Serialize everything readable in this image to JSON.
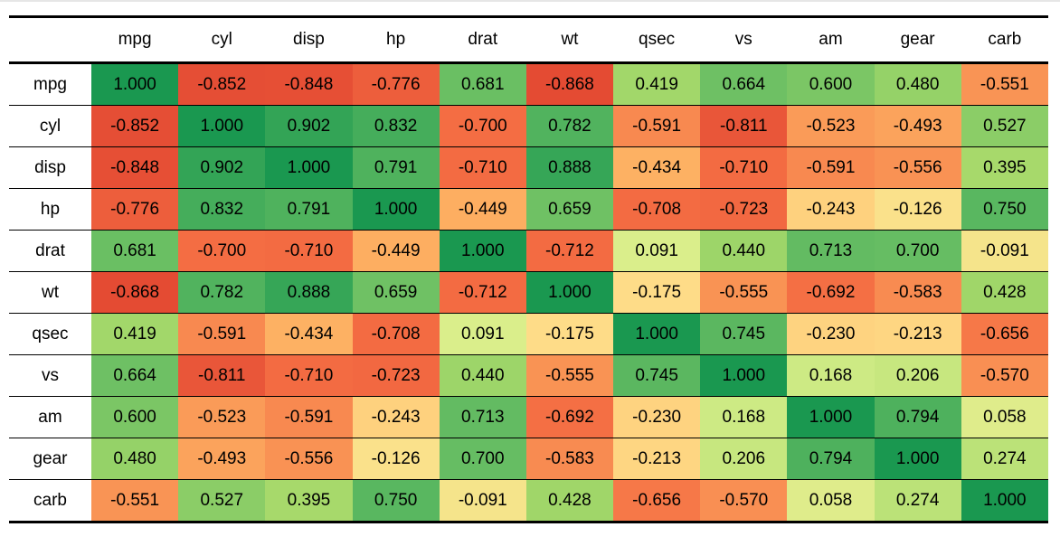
{
  "chart_data": {
    "type": "heatmap",
    "title": "",
    "columns": [
      "mpg",
      "cyl",
      "disp",
      "hp",
      "drat",
      "wt",
      "qsec",
      "vs",
      "am",
      "gear",
      "carb"
    ],
    "rows": [
      "mpg",
      "cyl",
      "disp",
      "hp",
      "drat",
      "wt",
      "qsec",
      "vs",
      "am",
      "gear",
      "carb"
    ],
    "values": [
      [
        1.0,
        -0.852,
        -0.848,
        -0.776,
        0.681,
        -0.868,
        0.419,
        0.664,
        0.6,
        0.48,
        -0.551
      ],
      [
        -0.852,
        1.0,
        0.902,
        0.832,
        -0.7,
        0.782,
        -0.591,
        -0.811,
        -0.523,
        -0.493,
        0.527
      ],
      [
        -0.848,
        0.902,
        1.0,
        0.791,
        -0.71,
        0.888,
        -0.434,
        -0.71,
        -0.591,
        -0.556,
        0.395
      ],
      [
        -0.776,
        0.832,
        0.791,
        1.0,
        -0.449,
        0.659,
        -0.708,
        -0.723,
        -0.243,
        -0.126,
        0.75
      ],
      [
        0.681,
        -0.7,
        -0.71,
        -0.449,
        1.0,
        -0.712,
        0.091,
        0.44,
        0.713,
        0.7,
        -0.091
      ],
      [
        -0.868,
        0.782,
        0.888,
        0.659,
        -0.712,
        1.0,
        -0.175,
        -0.555,
        -0.692,
        -0.583,
        0.428
      ],
      [
        0.419,
        -0.591,
        -0.434,
        -0.708,
        0.091,
        -0.175,
        1.0,
        0.745,
        -0.23,
        -0.213,
        -0.656
      ],
      [
        0.664,
        -0.811,
        -0.71,
        -0.723,
        0.44,
        -0.555,
        0.745,
        1.0,
        0.168,
        0.206,
        -0.57
      ],
      [
        0.6,
        -0.523,
        -0.591,
        -0.243,
        0.713,
        -0.692,
        -0.23,
        0.168,
        1.0,
        0.794,
        0.058
      ],
      [
        0.48,
        -0.493,
        -0.556,
        -0.126,
        0.7,
        -0.583,
        -0.213,
        0.206,
        0.794,
        1.0,
        0.274
      ],
      [
        -0.551,
        0.527,
        0.395,
        0.75,
        -0.091,
        0.428,
        -0.656,
        -0.57,
        0.058,
        0.274,
        1.0
      ]
    ],
    "color_scale": {
      "type": "diverging",
      "low": "#d73027",
      "mid": "#ffffbf",
      "high": "#1a9850"
    },
    "grid": true,
    "legend": "none"
  }
}
